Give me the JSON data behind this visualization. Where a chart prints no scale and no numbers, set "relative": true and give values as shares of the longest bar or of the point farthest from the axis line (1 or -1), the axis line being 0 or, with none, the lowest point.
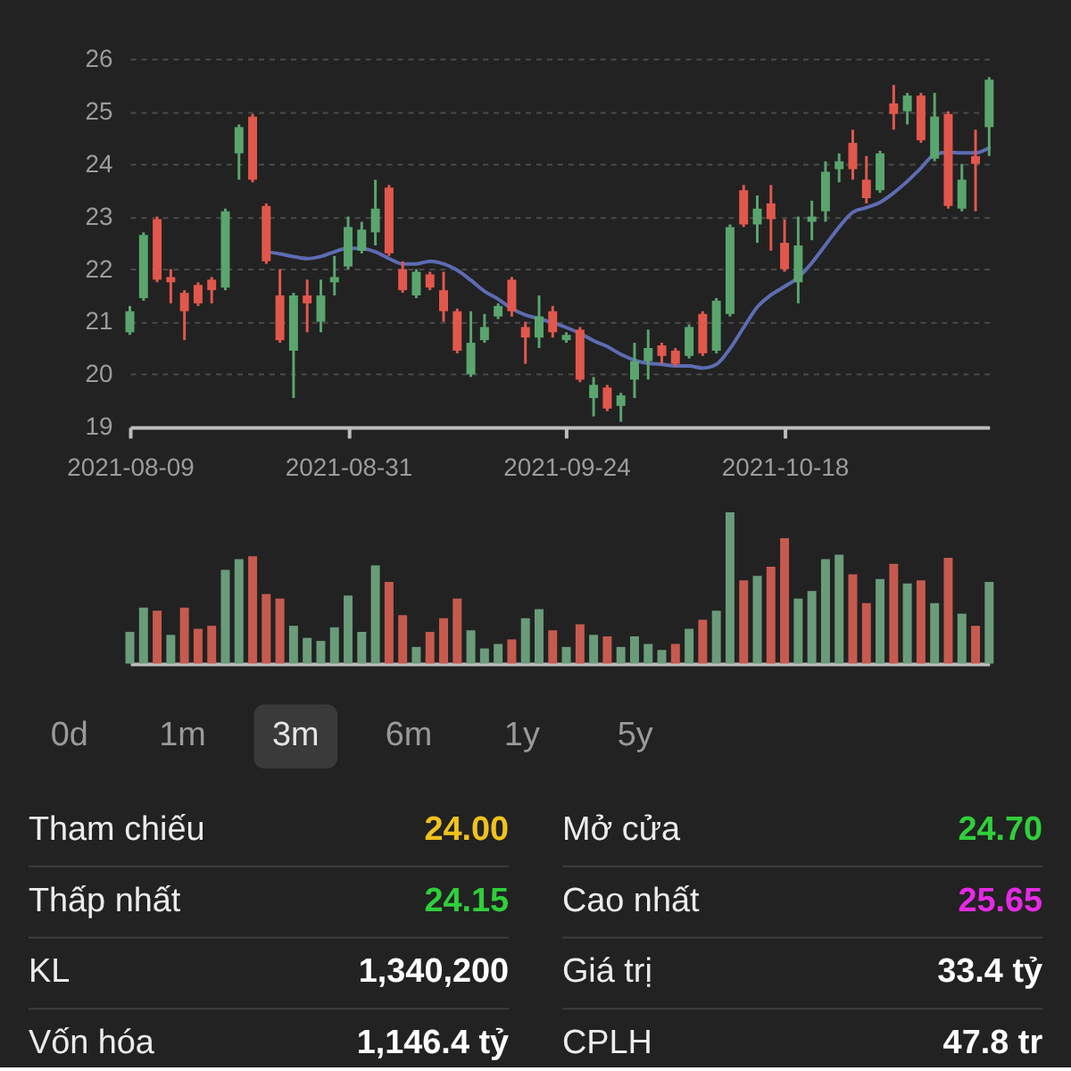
{
  "chart_data": [
    {
      "type": "candlestick",
      "categories": [
        "2021-08-09",
        null,
        null,
        null,
        null,
        null,
        null,
        null,
        null,
        null,
        null,
        null,
        null,
        null,
        null,
        null,
        "2021-08-31",
        null,
        null,
        null,
        null,
        null,
        null,
        null,
        null,
        null,
        null,
        null,
        null,
        null,
        null,
        null,
        "2021-09-24",
        null,
        null,
        null,
        null,
        null,
        null,
        null,
        null,
        null,
        null,
        null,
        null,
        null,
        null,
        null,
        "2021-10-18",
        null,
        null,
        null,
        null,
        null,
        null,
        null,
        null,
        null,
        null,
        null,
        null,
        null,
        null,
        null
      ],
      "ohlc": [
        [
          20.8,
          21.3,
          20.75,
          21.2
        ],
        [
          21.45,
          22.7,
          21.4,
          22.65
        ],
        [
          22.95,
          23.0,
          21.75,
          21.8
        ],
        [
          21.85,
          22.0,
          21.35,
          21.75
        ],
        [
          21.55,
          21.6,
          20.65,
          21.2
        ],
        [
          21.7,
          21.75,
          21.3,
          21.35
        ],
        [
          21.8,
          21.85,
          21.35,
          21.6
        ],
        [
          21.65,
          23.15,
          21.6,
          23.1
        ],
        [
          24.2,
          24.75,
          23.7,
          24.7
        ],
        [
          24.9,
          24.95,
          23.65,
          23.7
        ],
        [
          23.2,
          23.25,
          22.1,
          22.15
        ],
        [
          21.5,
          22.0,
          20.6,
          20.65
        ],
        [
          20.45,
          21.55,
          19.55,
          21.5
        ],
        [
          21.5,
          21.8,
          20.8,
          21.35
        ],
        [
          21.0,
          21.8,
          20.8,
          21.5
        ],
        [
          21.75,
          22.25,
          21.5,
          21.85
        ],
        [
          22.05,
          23.0,
          22.0,
          22.8
        ],
        [
          22.35,
          22.9,
          22.3,
          22.75
        ],
        [
          22.7,
          23.7,
          22.45,
          23.15
        ],
        [
          23.55,
          23.6,
          22.25,
          22.3
        ],
        [
          22.0,
          22.15,
          21.55,
          21.6
        ],
        [
          21.5,
          22.0,
          21.45,
          21.95
        ],
        [
          21.9,
          21.95,
          21.6,
          21.65
        ],
        [
          21.6,
          21.95,
          21.0,
          21.2
        ],
        [
          21.2,
          21.25,
          20.4,
          20.45
        ],
        [
          20.0,
          21.2,
          19.95,
          20.6
        ],
        [
          20.65,
          21.15,
          20.6,
          20.9
        ],
        [
          21.1,
          21.35,
          21.05,
          21.3
        ],
        [
          21.8,
          21.85,
          21.1,
          21.2
        ],
        [
          20.9,
          21.0,
          20.2,
          20.7
        ],
        [
          20.7,
          21.5,
          20.5,
          21.1
        ],
        [
          21.2,
          21.3,
          20.7,
          20.8
        ],
        [
          20.65,
          20.8,
          20.6,
          20.75
        ],
        [
          20.85,
          20.9,
          19.85,
          19.9
        ],
        [
          19.55,
          19.95,
          19.2,
          19.8
        ],
        [
          19.75,
          19.8,
          19.3,
          19.35
        ],
        [
          19.4,
          19.65,
          19.1,
          19.6
        ],
        [
          19.9,
          20.6,
          19.55,
          20.25
        ],
        [
          20.25,
          20.85,
          19.9,
          20.5
        ],
        [
          20.55,
          20.6,
          20.2,
          20.35
        ],
        [
          20.45,
          20.5,
          20.15,
          20.2
        ],
        [
          20.35,
          20.95,
          20.3,
          20.9
        ],
        [
          21.15,
          21.2,
          20.35,
          20.4
        ],
        [
          20.45,
          21.45,
          20.4,
          21.4
        ],
        [
          21.15,
          22.85,
          21.1,
          22.8
        ],
        [
          23.5,
          23.6,
          22.8,
          22.85
        ],
        [
          22.85,
          23.4,
          22.5,
          23.15
        ],
        [
          23.25,
          23.6,
          22.35,
          22.95
        ],
        [
          22.5,
          22.95,
          21.95,
          22.0
        ],
        [
          21.75,
          23.0,
          21.35,
          22.45
        ],
        [
          22.9,
          23.3,
          22.55,
          23.0
        ],
        [
          23.1,
          24.05,
          22.9,
          23.85
        ],
        [
          23.9,
          24.2,
          23.65,
          24.05
        ],
        [
          24.4,
          24.65,
          23.7,
          23.9
        ],
        [
          23.7,
          24.15,
          23.25,
          23.35
        ],
        [
          23.5,
          24.25,
          23.45,
          24.2
        ],
        [
          25.15,
          25.5,
          24.65,
          24.95
        ],
        [
          25.0,
          25.35,
          24.75,
          25.3
        ],
        [
          25.3,
          25.35,
          24.4,
          24.45
        ],
        [
          24.1,
          25.35,
          24.05,
          24.9
        ],
        [
          24.95,
          25.0,
          23.15,
          23.2
        ],
        [
          23.15,
          24.0,
          23.1,
          23.7
        ],
        [
          24.15,
          24.65,
          23.1,
          24.0
        ],
        [
          24.7,
          25.65,
          24.15,
          25.6
        ]
      ],
      "colors": [
        "#5aa56e",
        "#5aa56e",
        "#e2574c",
        "#e2574c",
        "#e2574c",
        "#e2574c",
        "#e2574c",
        "#5aa56e",
        "#5aa56e",
        "#e2574c",
        "#e2574c",
        "#e2574c",
        "#5aa56e",
        "#e2574c",
        "#5aa56e",
        "#5aa56e",
        "#5aa56e",
        "#5aa56e",
        "#5aa56e",
        "#e2574c",
        "#e2574c",
        "#5aa56e",
        "#e2574c",
        "#e2574c",
        "#e2574c",
        "#5aa56e",
        "#5aa56e",
        "#5aa56e",
        "#e2574c",
        "#e2574c",
        "#5aa56e",
        "#e2574c",
        "#5aa56e",
        "#e2574c",
        "#5aa56e",
        "#e2574c",
        "#5aa56e",
        "#5aa56e",
        "#5aa56e",
        "#e2574c",
        "#e2574c",
        "#5aa56e",
        "#e2574c",
        "#5aa56e",
        "#5aa56e",
        "#e2574c",
        "#5aa56e",
        "#e2574c",
        "#e2574c",
        "#5aa56e",
        "#5aa56e",
        "#5aa56e",
        "#5aa56e",
        "#e2574c",
        "#e2574c",
        "#5aa56e",
        "#e2574c",
        "#5aa56e",
        "#e2574c",
        "#5aa56e",
        "#e2574c",
        "#5aa56e",
        "#e2574c",
        "#5aa56e"
      ],
      "series": [
        {
          "type": "line",
          "color": "#5d6cb3",
          "values": [
            null,
            null,
            null,
            null,
            null,
            null,
            null,
            null,
            null,
            null,
            22.33,
            22.29,
            22.24,
            22.2,
            22.24,
            22.33,
            22.4,
            22.39,
            22.33,
            22.2,
            22.1,
            22.1,
            22.15,
            22.1,
            21.98,
            21.79,
            21.58,
            21.43,
            21.25,
            21.13,
            21.06,
            20.98,
            20.89,
            20.78,
            20.64,
            20.53,
            20.38,
            20.27,
            20.21,
            20.19,
            20.16,
            20.16,
            20.12,
            20.19,
            20.49,
            20.89,
            21.28,
            21.51,
            21.67,
            21.84,
            22.12,
            22.46,
            22.8,
            23.08,
            23.17,
            23.27,
            23.45,
            23.67,
            23.92,
            24.18,
            24.22,
            24.21,
            24.21,
            24.31
          ]
        }
      ],
      "ylim": [
        19,
        26
      ],
      "yticks": [
        19,
        20,
        21,
        22,
        23,
        24,
        25,
        26
      ],
      "grid": "y"
    },
    {
      "type": "bar",
      "relative": true,
      "tick_labels": false,
      "categories": [
        "2021-08-09",
        null,
        null,
        null,
        null,
        null,
        null,
        null,
        null,
        null,
        null,
        null,
        null,
        null,
        null,
        null,
        "2021-08-31",
        null,
        null,
        null,
        null,
        null,
        null,
        null,
        null,
        null,
        null,
        null,
        null,
        null,
        null,
        null,
        "2021-09-24",
        null,
        null,
        null,
        null,
        null,
        null,
        null,
        null,
        null,
        null,
        null,
        null,
        null,
        null,
        null,
        "2021-10-18",
        null,
        null,
        null,
        null,
        null,
        null,
        null,
        null,
        null,
        null,
        null,
        null,
        null,
        null,
        null
      ],
      "values": [
        0.21,
        0.37,
        0.35,
        0.19,
        0.37,
        0.23,
        0.25,
        0.62,
        0.69,
        0.71,
        0.46,
        0.43,
        0.25,
        0.17,
        0.15,
        0.24,
        0.45,
        0.21,
        0.65,
        0.54,
        0.32,
        0.11,
        0.21,
        0.3,
        0.43,
        0.22,
        0.1,
        0.13,
        0.16,
        0.3,
        0.36,
        0.22,
        0.11,
        0.26,
        0.19,
        0.18,
        0.11,
        0.18,
        0.13,
        0.09,
        0.13,
        0.23,
        0.29,
        0.35,
        1,
        0.55,
        0.58,
        0.64,
        0.83,
        0.43,
        0.48,
        0.69,
        0.72,
        0.59,
        0.4,
        0.56,
        0.66,
        0.53,
        0.55,
        0.4,
        0.7,
        0.33,
        0.25,
        0.54
      ],
      "colors": [
        "#6a9c7a",
        "#6a9c7a",
        "#c75a4e",
        "#6a9c7a",
        "#c75a4e",
        "#c75a4e",
        "#c75a4e",
        "#6a9c7a",
        "#6a9c7a",
        "#c75a4e",
        "#c75a4e",
        "#c75a4e",
        "#6a9c7a",
        "#6a9c7a",
        "#6a9c7a",
        "#6a9c7a",
        "#6a9c7a",
        "#6a9c7a",
        "#6a9c7a",
        "#c75a4e",
        "#c75a4e",
        "#6a9c7a",
        "#c75a4e",
        "#c75a4e",
        "#c75a4e",
        "#6a9c7a",
        "#6a9c7a",
        "#6a9c7a",
        "#c75a4e",
        "#6a9c7a",
        "#6a9c7a",
        "#c75a4e",
        "#6a9c7a",
        "#c75a4e",
        "#6a9c7a",
        "#c75a4e",
        "#6a9c7a",
        "#6a9c7a",
        "#6a9c7a",
        "#6a9c7a",
        "#c75a4e",
        "#6a9c7a",
        "#c75a4e",
        "#6a9c7a",
        "#6a9c7a",
        "#c75a4e",
        "#6a9c7a",
        "#c75a4e",
        "#c75a4e",
        "#6a9c7a",
        "#6a9c7a",
        "#6a9c7a",
        "#6a9c7a",
        "#c75a4e",
        "#c75a4e",
        "#6a9c7a",
        "#c75a4e",
        "#6a9c7a",
        "#c75a4e",
        "#6a9c7a",
        "#c75a4e",
        "#6a9c7a",
        "#c75a4e",
        "#6a9c7a"
      ]
    },
    {
      "type": "other",
      "categories": [
        "0d",
        "1m",
        "3m",
        "6m",
        "1y",
        "5y"
      ],
      "colors": [
        null,
        null,
        "#3a3a3a",
        null,
        null,
        null
      ]
    },
    {
      "type": "other",
      "categories": [
        "Tham chiếu",
        "Mở cửa",
        "Thấp nhất",
        "Cao nhất",
        "KL",
        "Giá trị",
        "Vốn hóa",
        "CPLH"
      ],
      "value_labels": [
        "24.00",
        "24.70",
        "24.15",
        "25.65",
        "1,340,200",
        "33.4 tỷ",
        "1,146.4 tỷ",
        "47.8 tr"
      ],
      "colors": [
        "#f0c21c",
        "#2fd03a",
        "#2fd03a",
        "#e52ae5",
        "#ffffff",
        "#ffffff",
        "#ffffff",
        "#ffffff"
      ]
    }
  ]
}
